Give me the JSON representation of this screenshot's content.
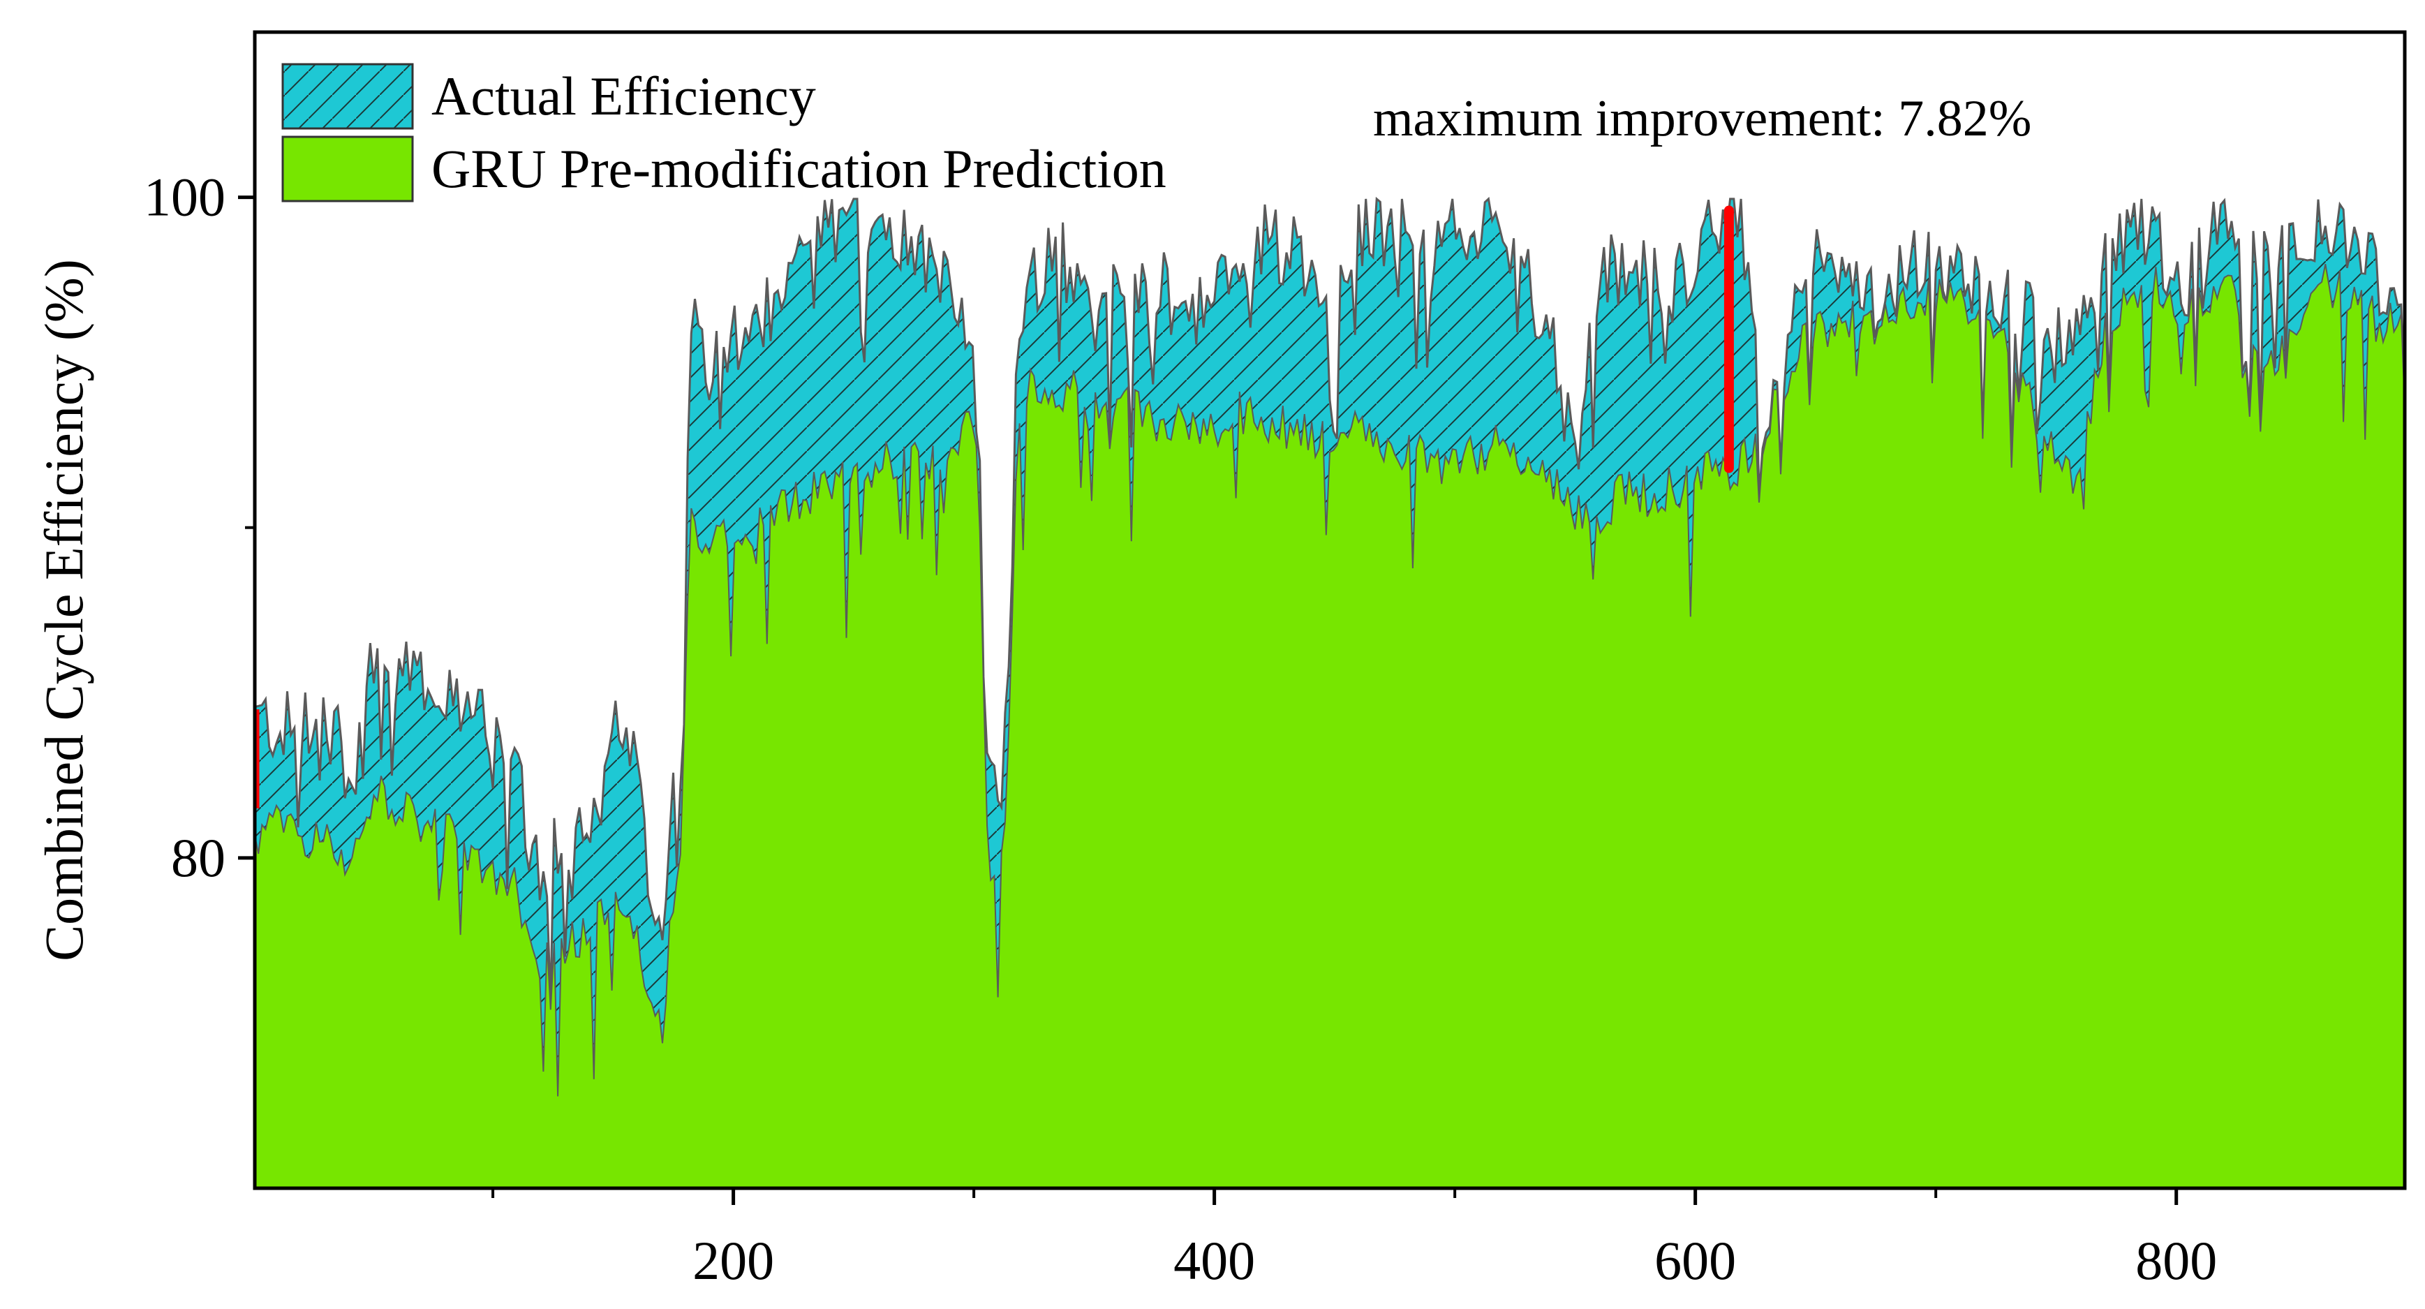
{
  "chart_data": {
    "type": "area",
    "title": "",
    "xlabel": "",
    "ylabel": "Combined Cycle Efficiency (%)",
    "xlim": [
      1,
      895
    ],
    "ylim": [
      70,
      105
    ],
    "xticks": [
      200,
      400,
      600,
      800
    ],
    "xticks_minor": [
      100,
      300,
      500,
      700
    ],
    "yticks": [
      80,
      100
    ],
    "yticks_minor": [
      90
    ],
    "grid": false,
    "legend_position": "top-left",
    "colors": {
      "actual_fill": "#1ec8d4",
      "actual_hatch": "#1a3a3a",
      "prediction_fill": "#77e600",
      "outline": "#5a5a5a",
      "marker": "#ff0000"
    },
    "legend": [
      {
        "name": "Actual Efficiency"
      },
      {
        "name": "GRU Pre-modification Prediction"
      }
    ],
    "annotation": {
      "text": "maximum improvement: 7.82%",
      "x": 614,
      "y_low": 91.8,
      "y_high": 99.6
    },
    "start_marker": {
      "x": 1,
      "y_low": 81.5,
      "y_high": 84.5
    },
    "series": [
      {
        "name": "Actual Efficiency",
        "x": [
          1,
          10,
          20,
          30,
          40,
          45,
          50,
          60,
          70,
          80,
          90,
          100,
          110,
          115,
          120,
          130,
          140,
          150,
          160,
          165,
          170,
          175,
          178,
          180,
          182,
          185,
          190,
          200,
          210,
          220,
          230,
          240,
          250,
          260,
          270,
          280,
          290,
          300,
          302,
          305,
          308,
          312,
          316,
          318,
          320,
          325,
          330,
          340,
          350,
          360,
          370,
          380,
          390,
          400,
          410,
          420,
          430,
          440,
          450,
          460,
          470,
          480,
          490,
          500,
          510,
          520,
          530,
          540,
          545,
          550,
          560,
          570,
          580,
          590,
          600,
          610,
          614,
          620,
          628,
          632,
          640,
          650,
          660,
          670,
          680,
          690,
          700,
          710,
          720,
          730,
          740,
          750,
          760,
          770,
          780,
          790,
          800,
          810,
          820,
          830,
          840,
          850,
          860,
          870,
          880,
          885,
          890,
          895
        ],
        "values": [
          84.2,
          84.0,
          83.8,
          84.5,
          82.5,
          83.5,
          86.0,
          85.5,
          85.8,
          84.5,
          85.0,
          84.0,
          83.5,
          80.5,
          79.5,
          80.5,
          81.5,
          84.0,
          82.5,
          79.0,
          77.5,
          82.0,
          82.5,
          89.5,
          97.0,
          95.5,
          95.0,
          95.5,
          96.0,
          97.0,
          98.5,
          99.0,
          99.2,
          99.3,
          99.0,
          98.5,
          97.0,
          95.0,
          93.0,
          83.0,
          82.0,
          82.5,
          89.0,
          96.0,
          96.5,
          97.5,
          98.0,
          98.2,
          96.5,
          97.0,
          97.5,
          97.8,
          96.5,
          97.0,
          98.0,
          98.8,
          98.5,
          98.0,
          97.5,
          99.0,
          99.3,
          99.0,
          98.0,
          99.2,
          99.3,
          98.5,
          97.5,
          96.0,
          94.0,
          92.0,
          97.5,
          98.0,
          97.5,
          97.0,
          98.5,
          99.2,
          99.6,
          99.0,
          93.5,
          94.0,
          96.0,
          98.0,
          97.5,
          97.0,
          96.8,
          98.0,
          98.2,
          97.8,
          97.5,
          97.0,
          96.5,
          96.0,
          95.5,
          98.0,
          98.8,
          99.0,
          97.0,
          98.5,
          99.0,
          98.5,
          97.5,
          98.8,
          99.2,
          98.5,
          98.0,
          97.5,
          97.0,
          97.5
        ]
      },
      {
        "name": "GRU Pre-modification Prediction",
        "x": [
          1,
          10,
          20,
          30,
          40,
          45,
          50,
          60,
          70,
          80,
          90,
          100,
          110,
          115,
          120,
          130,
          140,
          150,
          160,
          165,
          170,
          175,
          178,
          180,
          182,
          185,
          190,
          200,
          210,
          220,
          230,
          240,
          250,
          260,
          270,
          280,
          290,
          300,
          302,
          305,
          308,
          312,
          316,
          318,
          320,
          325,
          330,
          340,
          350,
          360,
          370,
          380,
          390,
          400,
          410,
          420,
          430,
          440,
          450,
          460,
          470,
          480,
          490,
          500,
          510,
          520,
          530,
          540,
          545,
          550,
          560,
          570,
          580,
          590,
          600,
          610,
          614,
          620,
          628,
          632,
          640,
          650,
          660,
          670,
          680,
          690,
          700,
          710,
          720,
          730,
          740,
          750,
          760,
          770,
          780,
          790,
          800,
          810,
          820,
          830,
          840,
          850,
          860,
          870,
          880,
          885,
          890,
          895
        ],
        "values": [
          80.5,
          81.0,
          80.8,
          80.5,
          80.0,
          80.5,
          82.0,
          81.5,
          81.0,
          80.8,
          80.0,
          79.5,
          79.0,
          77.0,
          76.5,
          77.5,
          77.8,
          78.5,
          78.0,
          76.0,
          74.5,
          79.0,
          80.0,
          86.0,
          90.0,
          89.5,
          89.5,
          89.8,
          90.0,
          90.5,
          91.0,
          91.2,
          91.5,
          92.0,
          92.2,
          92.0,
          92.5,
          93.5,
          92.0,
          81.0,
          79.5,
          80.0,
          87.0,
          93.5,
          94.0,
          94.2,
          94.0,
          94.2,
          93.5,
          93.8,
          93.5,
          93.0,
          93.2,
          93.0,
          93.5,
          93.2,
          93.0,
          92.8,
          93.0,
          92.8,
          92.5,
          92.2,
          92.0,
          92.0,
          92.2,
          92.5,
          92.0,
          91.5,
          91.0,
          90.5,
          90.5,
          91.0,
          91.0,
          91.2,
          91.5,
          91.8,
          91.8,
          92.0,
          93.2,
          93.8,
          95.0,
          96.0,
          96.2,
          96.5,
          96.8,
          97.0,
          97.0,
          96.8,
          96.5,
          95.5,
          93.5,
          92.0,
          91.5,
          96.0,
          97.0,
          97.5,
          96.5,
          97.0,
          97.2,
          96.5,
          95.0,
          96.0,
          97.5,
          97.0,
          96.5,
          96.0,
          96.5,
          97.0
        ]
      }
    ]
  }
}
